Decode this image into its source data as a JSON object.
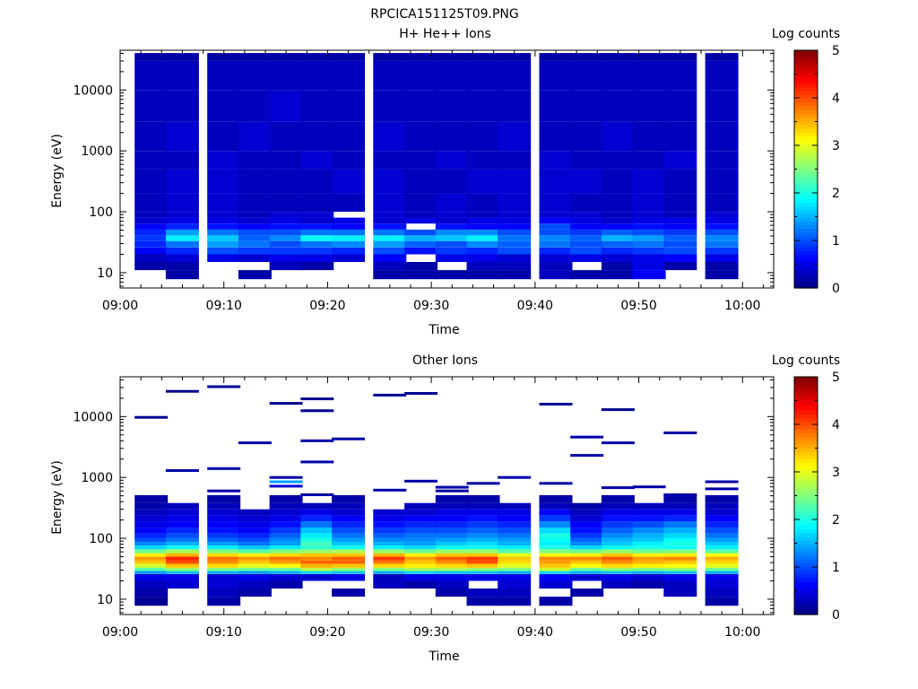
{
  "file_title": "RPCICA151125T09.PNG",
  "chart_data": [
    {
      "type": "heatmap",
      "title": "H+ He++ Ions",
      "xlabel": "Time",
      "ylabel": "Energy (eV)",
      "x_ticks": [
        "09:00",
        "09:10",
        "09:20",
        "09:30",
        "09:40",
        "09:50",
        "10:00"
      ],
      "x_range": [
        "09:00",
        "10:03"
      ],
      "y_scale": "log",
      "y_ticks": [
        10,
        100,
        1000,
        10000
      ],
      "y_range": [
        5.6,
        45000
      ],
      "colorbar": {
        "label": "Log counts",
        "range": [
          0,
          5
        ],
        "ticks": [
          0,
          1,
          2,
          3,
          4,
          5
        ],
        "colormap": "jet"
      },
      "time_bins": [
        "09:03",
        "09:06",
        "09:10",
        "09:13",
        "09:16",
        "09:19",
        "09:22",
        "09:26",
        "09:29",
        "09:32",
        "09:35",
        "09:38",
        "09:42",
        "09:45",
        "09:48",
        "09:51",
        "09:54",
        "09:58"
      ],
      "time_bin_width_min": 3.2,
      "energy_bins_eV": [
        7.8,
        11,
        15,
        20,
        26,
        33,
        41,
        51,
        64,
        80,
        100,
        200,
        500,
        1000,
        3000,
        10000,
        30000
      ],
      "counts_log10": [
        [
          null,
          0.2,
          null,
          0.2,
          null,
          null,
          null,
          0.2,
          0.2,
          0.2,
          0.2,
          0.2,
          0.3,
          0.2,
          0.2,
          0.6,
          null,
          0.2
        ],
        [
          0.2,
          0.2,
          null,
          null,
          0.3,
          0.2,
          null,
          0.3,
          0.2,
          null,
          0.3,
          0.3,
          0.3,
          null,
          0.2,
          0.5,
          0.2,
          0.2
        ],
        [
          0.3,
          0.4,
          0.5,
          0.4,
          0.5,
          0.5,
          0.4,
          0.6,
          null,
          0.5,
          0.5,
          0.4,
          0.4,
          0.5,
          0.4,
          0.5,
          0.6,
          0.5
        ],
        [
          0.6,
          0.8,
          1.0,
          0.9,
          0.9,
          0.9,
          0.8,
          1.0,
          0.7,
          0.9,
          0.8,
          1.0,
          0.8,
          1.0,
          0.8,
          0.9,
          1.0,
          0.9
        ],
        [
          0.8,
          1.2,
          1.4,
          1.2,
          1.0,
          1.2,
          1.3,
          1.4,
          1.1,
          1.0,
          1.3,
          1.1,
          1.2,
          1.0,
          1.1,
          1.2,
          1.0,
          1.2
        ],
        [
          0.9,
          1.8,
          1.6,
          1.1,
          1.3,
          1.9,
          1.8,
          1.8,
          1.5,
          1.6,
          1.8,
          1.2,
          1.3,
          1.1,
          1.5,
          1.4,
          1.1,
          1.3
        ],
        [
          0.8,
          1.4,
          1.2,
          1.0,
          1.0,
          1.2,
          1.2,
          1.2,
          1.0,
          1.3,
          1.3,
          1.0,
          1.0,
          0.9,
          1.1,
          1.0,
          0.9,
          1.0
        ],
        [
          0.6,
          0.8,
          0.7,
          0.6,
          0.7,
          0.7,
          0.6,
          0.7,
          null,
          0.7,
          0.6,
          0.6,
          1.0,
          0.6,
          0.6,
          0.7,
          0.6,
          0.7
        ],
        [
          0.4,
          0.5,
          0.5,
          0.4,
          0.5,
          0.4,
          0.5,
          0.4,
          0.5,
          0.4,
          0.5,
          0.5,
          0.6,
          0.5,
          0.4,
          0.5,
          0.5,
          0.5
        ],
        [
          0.3,
          0.4,
          0.4,
          0.3,
          0.4,
          0.4,
          null,
          0.4,
          0.3,
          0.4,
          0.3,
          0.4,
          0.4,
          0.4,
          0.3,
          0.4,
          0.3,
          0.4
        ],
        [
          0.3,
          0.4,
          0.4,
          0.3,
          0.3,
          0.3,
          0.3,
          0.4,
          0.3,
          0.4,
          0.3,
          0.4,
          0.4,
          0.3,
          0.3,
          0.4,
          0.3,
          0.3
        ],
        [
          0.3,
          0.4,
          0.4,
          0.3,
          0.3,
          0.3,
          0.4,
          0.4,
          0.3,
          0.3,
          0.4,
          0.4,
          0.4,
          0.4,
          0.3,
          0.4,
          0.3,
          0.3
        ],
        [
          0.3,
          0.3,
          0.4,
          0.3,
          0.3,
          0.4,
          0.3,
          0.3,
          0.3,
          0.4,
          0.3,
          0.3,
          0.4,
          0.3,
          0.3,
          0.3,
          0.4,
          0.3
        ],
        [
          0.3,
          0.4,
          0.3,
          0.4,
          0.3,
          0.3,
          0.3,
          0.4,
          0.3,
          0.3,
          0.3,
          0.4,
          0.3,
          0.3,
          0.4,
          0.3,
          0.3,
          0.3
        ],
        [
          0.3,
          0.3,
          0.3,
          0.3,
          0.4,
          0.3,
          0.3,
          0.3,
          0.3,
          0.3,
          0.3,
          0.3,
          0.3,
          0.3,
          0.3,
          0.3,
          0.3,
          0.3
        ],
        [
          0.3,
          0.3,
          0.3,
          0.3,
          0.3,
          0.3,
          0.3,
          0.3,
          0.3,
          0.3,
          0.3,
          0.3,
          0.3,
          0.3,
          0.3,
          0.3,
          0.3,
          0.3
        ],
        [
          0.2,
          0.2,
          0.2,
          0.2,
          0.2,
          0.2,
          0.2,
          0.2,
          0.2,
          0.2,
          0.2,
          0.2,
          0.2,
          0.2,
          0.2,
          0.2,
          0.2,
          0.2
        ]
      ]
    },
    {
      "type": "heatmap",
      "title": "Other Ions",
      "xlabel": "Time",
      "ylabel": "Energy (eV)",
      "x_ticks": [
        "09:00",
        "09:10",
        "09:20",
        "09:30",
        "09:40",
        "09:50",
        "10:00"
      ],
      "x_range": [
        "09:00",
        "10:03"
      ],
      "y_scale": "log",
      "y_ticks": [
        10,
        100,
        1000,
        10000
      ],
      "y_range": [
        5.6,
        45000
      ],
      "colorbar": {
        "label": "Log counts",
        "range": [
          0,
          5
        ],
        "ticks": [
          0,
          1,
          2,
          3,
          4,
          5
        ],
        "colormap": "jet"
      },
      "time_bins": [
        "09:03",
        "09:06",
        "09:10",
        "09:13",
        "09:16",
        "09:19",
        "09:22",
        "09:26",
        "09:29",
        "09:32",
        "09:35",
        "09:38",
        "09:42",
        "09:45",
        "09:48",
        "09:51",
        "09:54",
        "09:58"
      ],
      "time_bin_width_min": 3.2,
      "energy_bins_eV": [
        7.8,
        11,
        15,
        20,
        26,
        29,
        33,
        38,
        43,
        50,
        57,
        66,
        76,
        88,
        102,
        120,
        150,
        190,
        240,
        300,
        380
      ],
      "counts_log10": [
        [
          0.1,
          null,
          0.2,
          null,
          null,
          null,
          null,
          null,
          null,
          null,
          0.2,
          0.2,
          0.2,
          null,
          null,
          null,
          null,
          0.2
        ],
        [
          0.2,
          null,
          0.3,
          0.2,
          null,
          null,
          0.2,
          null,
          null,
          0.2,
          0.3,
          0.3,
          null,
          0.2,
          null,
          null,
          0.3,
          0.3
        ],
        [
          0.3,
          0.4,
          0.4,
          0.3,
          0.2,
          null,
          null,
          0.3,
          0.2,
          0.3,
          null,
          0.4,
          0.4,
          null,
          0.3,
          0.2,
          0.3,
          0.4
        ],
        [
          0.5,
          0.5,
          0.4,
          0.5,
          0.4,
          0.4,
          0.5,
          0.3,
          0.5,
          0.5,
          0.5,
          0.5,
          0.6,
          0.4,
          0.5,
          0.4,
          0.5,
          0.5
        ],
        [
          1.4,
          1.6,
          1.5,
          1.4,
          1.5,
          1.7,
          1.6,
          1.5,
          1.7,
          1.6,
          1.6,
          1.5,
          1.7,
          1.5,
          1.6,
          1.5,
          1.6,
          1.5
        ],
        [
          2.3,
          2.6,
          2.5,
          2.4,
          2.4,
          2.8,
          2.6,
          2.5,
          2.7,
          2.7,
          2.6,
          2.5,
          2.9,
          2.4,
          2.6,
          2.5,
          2.6,
          2.4
        ],
        [
          2.9,
          3.4,
          3.3,
          3.0,
          3.1,
          3.5,
          3.4,
          3.3,
          3.2,
          3.3,
          3.4,
          3.0,
          3.4,
          3.1,
          3.3,
          3.2,
          3.1,
          3.0
        ],
        [
          3.4,
          4.0,
          3.7,
          3.4,
          3.6,
          3.9,
          3.9,
          3.8,
          3.4,
          3.7,
          4.0,
          3.3,
          3.6,
          3.4,
          3.7,
          3.5,
          3.4,
          3.3
        ],
        [
          3.6,
          4.2,
          3.8,
          3.6,
          3.8,
          3.7,
          3.9,
          4.1,
          3.6,
          3.9,
          4.1,
          3.4,
          3.7,
          3.7,
          3.9,
          3.6,
          3.7,
          3.5
        ],
        [
          3.2,
          3.5,
          3.3,
          3.2,
          3.3,
          3.4,
          3.4,
          3.5,
          3.2,
          3.4,
          3.4,
          3.0,
          3.1,
          3.2,
          3.4,
          3.2,
          3.2,
          3.1
        ],
        [
          2.4,
          2.7,
          2.5,
          2.3,
          2.5,
          2.6,
          2.7,
          2.6,
          2.4,
          2.6,
          2.6,
          2.3,
          2.5,
          2.4,
          2.6,
          2.4,
          2.5,
          2.3
        ],
        [
          1.7,
          1.9,
          1.8,
          1.6,
          1.8,
          2.1,
          1.9,
          1.8,
          1.7,
          1.9,
          1.9,
          1.8,
          2.0,
          1.7,
          1.9,
          2.0,
          1.9,
          1.8
        ],
        [
          1.3,
          1.5,
          1.4,
          1.2,
          1.4,
          2.2,
          1.6,
          1.5,
          1.4,
          1.6,
          1.7,
          1.5,
          1.8,
          1.3,
          1.6,
          1.8,
          2.0,
          1.6
        ],
        [
          1.0,
          1.2,
          1.1,
          1.0,
          1.3,
          2.0,
          1.4,
          1.3,
          1.3,
          1.4,
          1.5,
          1.4,
          1.9,
          1.1,
          1.5,
          1.6,
          1.9,
          1.4
        ],
        [
          0.8,
          1.0,
          0.9,
          0.8,
          1.1,
          1.8,
          1.2,
          1.1,
          1.2,
          1.2,
          1.3,
          1.2,
          2.0,
          0.9,
          1.3,
          1.5,
          1.7,
          1.2
        ],
        [
          0.6,
          0.8,
          0.7,
          0.6,
          0.9,
          1.6,
          1.0,
          0.9,
          1.0,
          1.0,
          1.1,
          1.0,
          1.7,
          0.7,
          1.1,
          1.3,
          1.5,
          1.0
        ],
        [
          0.5,
          0.6,
          0.6,
          0.5,
          0.7,
          1.2,
          0.8,
          0.7,
          0.8,
          0.8,
          0.9,
          0.8,
          1.3,
          0.6,
          0.9,
          1.0,
          1.2,
          0.8
        ],
        [
          0.4,
          0.5,
          0.5,
          0.4,
          0.5,
          0.8,
          0.6,
          0.5,
          0.6,
          0.6,
          0.7,
          0.6,
          0.9,
          0.4,
          0.7,
          0.7,
          0.8,
          0.6
        ],
        [
          0.3,
          0.4,
          0.4,
          0.3,
          0.4,
          0.5,
          0.4,
          0.4,
          0.4,
          0.5,
          0.5,
          0.5,
          0.6,
          0.3,
          0.5,
          0.5,
          0.5,
          0.4
        ],
        [
          0.2,
          0.3,
          0.3,
          null,
          0.3,
          0.3,
          0.3,
          null,
          0.3,
          0.3,
          0.3,
          0.3,
          0.3,
          0.2,
          0.3,
          0.3,
          0.3,
          0.3
        ],
        [
          0.2,
          null,
          0.2,
          null,
          0.2,
          null,
          0.2,
          null,
          null,
          0.2,
          0.2,
          null,
          0.2,
          null,
          0.2,
          null,
          0.2,
          0.2
        ]
      ],
      "sparse_lines": [
        {
          "time": "09:03",
          "energy_eV": 9700,
          "log_counts": 0.1
        },
        {
          "time": "09:06",
          "energy_eV": 26000,
          "log_counts": 0.1
        },
        {
          "time": "09:06",
          "energy_eV": 1300,
          "log_counts": 0.2
        },
        {
          "time": "09:10",
          "energy_eV": 31000,
          "log_counts": 0.1
        },
        {
          "time": "09:10",
          "energy_eV": 1400,
          "log_counts": 0.2
        },
        {
          "time": "09:10",
          "energy_eV": 600,
          "log_counts": 0.2
        },
        {
          "time": "09:13",
          "energy_eV": 3700,
          "log_counts": 0.2
        },
        {
          "time": "09:16",
          "energy_eV": 16500,
          "log_counts": 0.1
        },
        {
          "time": "09:16",
          "energy_eV": 1000,
          "log_counts": 0.2
        },
        {
          "time": "09:16",
          "energy_eV": 850,
          "log_counts": 1.4
        },
        {
          "time": "09:16",
          "energy_eV": 720,
          "log_counts": 0.4
        },
        {
          "time": "09:19",
          "energy_eV": 19500,
          "log_counts": 0.1
        },
        {
          "time": "09:19",
          "energy_eV": 12500,
          "log_counts": 0.1
        },
        {
          "time": "09:19",
          "energy_eV": 4000,
          "log_counts": 0.2
        },
        {
          "time": "09:19",
          "energy_eV": 1800,
          "log_counts": 0.2
        },
        {
          "time": "09:19",
          "energy_eV": 520,
          "log_counts": 0.2
        },
        {
          "time": "09:22",
          "energy_eV": 4300,
          "log_counts": 0.2
        },
        {
          "time": "09:26",
          "energy_eV": 22500,
          "log_counts": 0.1
        },
        {
          "time": "09:26",
          "energy_eV": 620,
          "log_counts": 0.2
        },
        {
          "time": "09:29",
          "energy_eV": 24000,
          "log_counts": 0.1
        },
        {
          "time": "09:29",
          "energy_eV": 870,
          "log_counts": 0.2
        },
        {
          "time": "09:32",
          "energy_eV": 690,
          "log_counts": 0.2
        },
        {
          "time": "09:32",
          "energy_eV": 600,
          "log_counts": 0.2
        },
        {
          "time": "09:35",
          "energy_eV": 800,
          "log_counts": 0.2
        },
        {
          "time": "09:38",
          "energy_eV": 1000,
          "log_counts": 0.2
        },
        {
          "time": "09:42",
          "energy_eV": 16000,
          "log_counts": 0.1
        },
        {
          "time": "09:42",
          "energy_eV": 800,
          "log_counts": 0.2
        },
        {
          "time": "09:45",
          "energy_eV": 4600,
          "log_counts": 0.2
        },
        {
          "time": "09:45",
          "energy_eV": 2300,
          "log_counts": 0.2
        },
        {
          "time": "09:48",
          "energy_eV": 13000,
          "log_counts": 0.1
        },
        {
          "time": "09:48",
          "energy_eV": 3700,
          "log_counts": 0.2
        },
        {
          "time": "09:48",
          "energy_eV": 680,
          "log_counts": 0.2
        },
        {
          "time": "09:51",
          "energy_eV": 700,
          "log_counts": 0.2
        },
        {
          "time": "09:54",
          "energy_eV": 5400,
          "log_counts": 0.2
        },
        {
          "time": "09:54",
          "energy_eV": 520,
          "log_counts": 0.2
        },
        {
          "time": "09:58",
          "energy_eV": 850,
          "log_counts": 0.2
        },
        {
          "time": "09:58",
          "energy_eV": 650,
          "log_counts": 0.2
        }
      ]
    }
  ]
}
